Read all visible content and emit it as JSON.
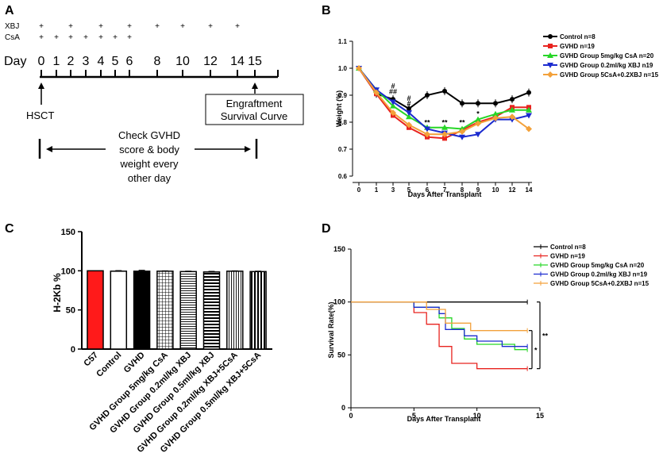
{
  "figure": {
    "panels": {
      "a": "A",
      "b": "B",
      "c": "C",
      "d": "D"
    }
  },
  "panel_a": {
    "rows": [
      {
        "label": "XBJ",
        "marks": [
          0,
          2,
          4,
          6,
          8,
          10,
          12,
          14
        ]
      },
      {
        "label": "CsA",
        "marks": [
          0,
          1,
          2,
          3,
          4,
          5,
          6
        ]
      }
    ],
    "plus": "+",
    "day_label": "Day",
    "days": [
      "0",
      "1",
      "2",
      "3",
      "4",
      "5",
      "6",
      "8",
      "10",
      "12",
      "14",
      "15"
    ],
    "hsct": "HSCT",
    "engraft_line1": "Engraftment",
    "engraft_line2": "Survival Curve",
    "check_lines": [
      "Check GVHD",
      "score & body",
      "weight every",
      "other day"
    ]
  },
  "chart_data": [
    {
      "id": "B",
      "type": "line",
      "xlabel": "Days After Transplant",
      "ylabel": "Weight (%)",
      "x": [
        0,
        1,
        3,
        5,
        6,
        7,
        8,
        9,
        10,
        12,
        14
      ],
      "xticks": [
        "0",
        "1",
        "3",
        "5",
        "6",
        "7",
        "8",
        "9",
        "10",
        "12",
        "14"
      ],
      "ylim": [
        0.6,
        1.1
      ],
      "yticks": [
        "0.6",
        "0.7",
        "0.8",
        "0.9",
        "1.0",
        "1.1"
      ],
      "series": [
        {
          "name": "Control n=8",
          "color": "#000000",
          "marker": "circle",
          "values": [
            1.0,
            0.905,
            0.885,
            0.85,
            0.9,
            0.915,
            0.87,
            0.87,
            0.87,
            0.885,
            0.91
          ]
        },
        {
          "name": "GVHD n=19",
          "color": "#e8231f",
          "marker": "square",
          "values": [
            1.0,
            0.905,
            0.825,
            0.78,
            0.745,
            0.74,
            0.77,
            0.8,
            0.82,
            0.855,
            0.855
          ]
        },
        {
          "name": "GVHD Group 5mg/kg CsA n=20",
          "color": "#27d627",
          "marker": "triangle-up",
          "values": [
            1.0,
            0.92,
            0.86,
            0.82,
            0.78,
            0.78,
            0.775,
            0.81,
            0.83,
            0.845,
            0.845
          ]
        },
        {
          "name": "GVHD Group 0.2ml/kg XBJ n19",
          "color": "#1b2bcf",
          "marker": "triangle-down",
          "values": [
            1.0,
            0.92,
            0.875,
            0.835,
            0.775,
            0.76,
            0.745,
            0.755,
            0.81,
            0.81,
            0.825
          ]
        },
        {
          "name": "GVHD Group 5CsA+0.2XBJ n=15",
          "color": "#f3a13a",
          "marker": "diamond",
          "values": [
            1.0,
            0.91,
            0.835,
            0.79,
            0.755,
            0.755,
            0.765,
            0.795,
            0.815,
            0.82,
            0.775
          ]
        }
      ],
      "annotations": [
        {
          "x": 3,
          "y": 0.925,
          "text": "#",
          "color": "#27d627"
        },
        {
          "x": 3,
          "y": 0.905,
          "text": "##",
          "color": "#1b2bcf"
        },
        {
          "x": 5,
          "y": 0.88,
          "text": "#",
          "color": "#27d627"
        },
        {
          "x": 5,
          "y": 0.86,
          "text": "#",
          "color": "#1b2bcf"
        },
        {
          "x": 6,
          "y": 0.79,
          "text": "**",
          "color": "#e8231f"
        },
        {
          "x": 7,
          "y": 0.79,
          "text": "**",
          "color": "#e8231f"
        },
        {
          "x": 8,
          "y": 0.79,
          "text": "**",
          "color": "#e8231f"
        },
        {
          "x": 9,
          "y": 0.822,
          "text": "*",
          "color": "#e8231f"
        }
      ]
    },
    {
      "id": "C",
      "type": "bar",
      "ylabel": "H-2Kb %",
      "ylim": [
        0,
        150
      ],
      "yticks": [
        "0",
        "50",
        "100",
        "150"
      ],
      "categories": [
        "C57",
        "Control",
        "GVHD",
        "GVHD Group 5mg/kg CsA",
        "GVHD Group 0.2ml/kg XBJ",
        "GVHD Group 0.5ml/kg XBJ",
        "GVHD Group 0.2ml/kg XBJ+5CsA",
        "GVHD Group 0.5ml/kg XBJ+5CsA"
      ],
      "values": [
        100,
        99.5,
        99.5,
        99.5,
        99,
        98.5,
        99.5,
        99
      ],
      "errors": [
        0,
        0.8,
        1.2,
        0.5,
        0.6,
        0.8,
        0.5,
        0.6
      ],
      "fills": [
        "solid-red",
        "white",
        "solid-black",
        "grid",
        "hlines-fine",
        "hlines-thick",
        "vlines-fine",
        "vlines-thick"
      ]
    },
    {
      "id": "D",
      "type": "line",
      "subtype": "survival-step",
      "xlabel": "Days After Transplant",
      "ylabel": "Survival Rate(%)",
      "xlim": [
        0,
        15
      ],
      "ylim": [
        0,
        150
      ],
      "xticks": [
        "0",
        "5",
        "10",
        "15"
      ],
      "yticks": [
        "0",
        "50",
        "100",
        "150"
      ],
      "series": [
        {
          "name": "Control n=8",
          "color": "#000000",
          "steps": [
            [
              0,
              100
            ],
            [
              14,
              100
            ]
          ]
        },
        {
          "name": "GVHD n=19",
          "color": "#e8231f",
          "steps": [
            [
              0,
              100
            ],
            [
              5,
              100
            ],
            [
              5,
              90
            ],
            [
              6,
              90
            ],
            [
              6,
              79
            ],
            [
              7,
              79
            ],
            [
              7,
              58
            ],
            [
              8,
              58
            ],
            [
              8,
              42
            ],
            [
              10,
              42
            ],
            [
              10,
              37
            ],
            [
              14,
              37
            ]
          ]
        },
        {
          "name": "GVHD Group 5mg/kg CsA n=20",
          "color": "#27d627",
          "steps": [
            [
              0,
              100
            ],
            [
              5,
              100
            ],
            [
              5,
              95
            ],
            [
              7,
              95
            ],
            [
              7,
              85
            ],
            [
              8,
              85
            ],
            [
              8,
              75
            ],
            [
              9,
              75
            ],
            [
              9,
              65
            ],
            [
              10,
              65
            ],
            [
              10,
              60
            ],
            [
              13,
              60
            ],
            [
              13,
              55
            ],
            [
              14,
              55
            ]
          ]
        },
        {
          "name": "GVHD Group 0.2ml/kg XBJ n=19",
          "color": "#1b2bcf",
          "steps": [
            [
              0,
              100
            ],
            [
              5,
              100
            ],
            [
              5,
              95
            ],
            [
              7,
              95
            ],
            [
              7,
              89
            ],
            [
              7.5,
              89
            ],
            [
              7.5,
              74
            ],
            [
              9,
              74
            ],
            [
              9,
              68
            ],
            [
              10,
              68
            ],
            [
              10,
              63
            ],
            [
              12,
              63
            ],
            [
              12,
              58
            ],
            [
              14,
              58
            ]
          ]
        },
        {
          "name": "GVHD Group 5CsA+0.2XBJ n=15",
          "color": "#f3a13a",
          "steps": [
            [
              0,
              100
            ],
            [
              6,
              100
            ],
            [
              6,
              93
            ],
            [
              7.5,
              93
            ],
            [
              7.5,
              80
            ],
            [
              9.5,
              80
            ],
            [
              9.5,
              73
            ],
            [
              14,
              73
            ]
          ]
        }
      ],
      "significance": [
        {
          "from": 73,
          "to": 37,
          "label": "*"
        },
        {
          "from": 100,
          "to": 37,
          "label": "**"
        }
      ]
    }
  ]
}
